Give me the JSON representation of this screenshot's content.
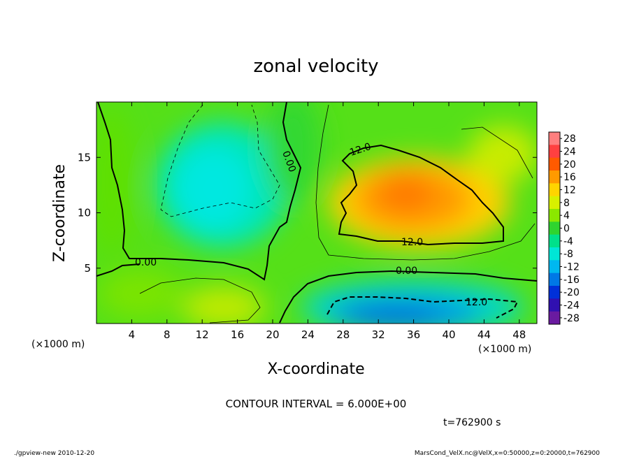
{
  "chart_data": {
    "type": "heatmap",
    "title": "zonal velocity",
    "xlabel": "X-coordinate",
    "ylabel": "Z-coordinate",
    "x_unit": "(×1000 m)",
    "xlim": [
      0,
      50
    ],
    "ylim": [
      0,
      20
    ],
    "x_ticks": [
      4,
      8,
      12,
      16,
      20,
      24,
      28,
      32,
      36,
      40,
      44,
      48
    ],
    "y_ticks": [
      5,
      10,
      15
    ],
    "colorbar": {
      "levels": [
        28,
        24,
        20,
        16,
        12,
        8,
        4,
        0,
        -4,
        -8,
        -12,
        -16,
        -20,
        -24,
        -28
      ],
      "colors": [
        "#ff7f7f",
        "#ff4040",
        "#ff5a00",
        "#ff9a00",
        "#ffd400",
        "#d8f000",
        "#8be800",
        "#2fd42f",
        "#00e08a",
        "#00e6d6",
        "#00b8f0",
        "#0078e6",
        "#0030d8",
        "#3010b0",
        "#6a1aa0"
      ]
    },
    "contour_labels": [
      {
        "text": "12.0",
        "x": 31.0,
        "z": 15.6
      },
      {
        "text": "12.0",
        "x": 36.5,
        "z": 7.5
      },
      {
        "text": "0.00",
        "x": 22.5,
        "z": 15.0
      },
      {
        "text": "0.00",
        "x": 6.0,
        "z": 5.6
      },
      {
        "text": "0.00",
        "x": 36.0,
        "z": 4.8
      },
      {
        "text": "12.0",
        "x": 43.0,
        "z": 1.9
      }
    ],
    "contour_interval": "CONTOUR INTERVAL = 6.000E+00",
    "time_label": "t=762900 s",
    "footer_left": "./gpview-new   2010-12-20",
    "footer_right": "MarsCond_VelX.nc@VelX,x=0:50000,z=0:20000,t=762900"
  }
}
